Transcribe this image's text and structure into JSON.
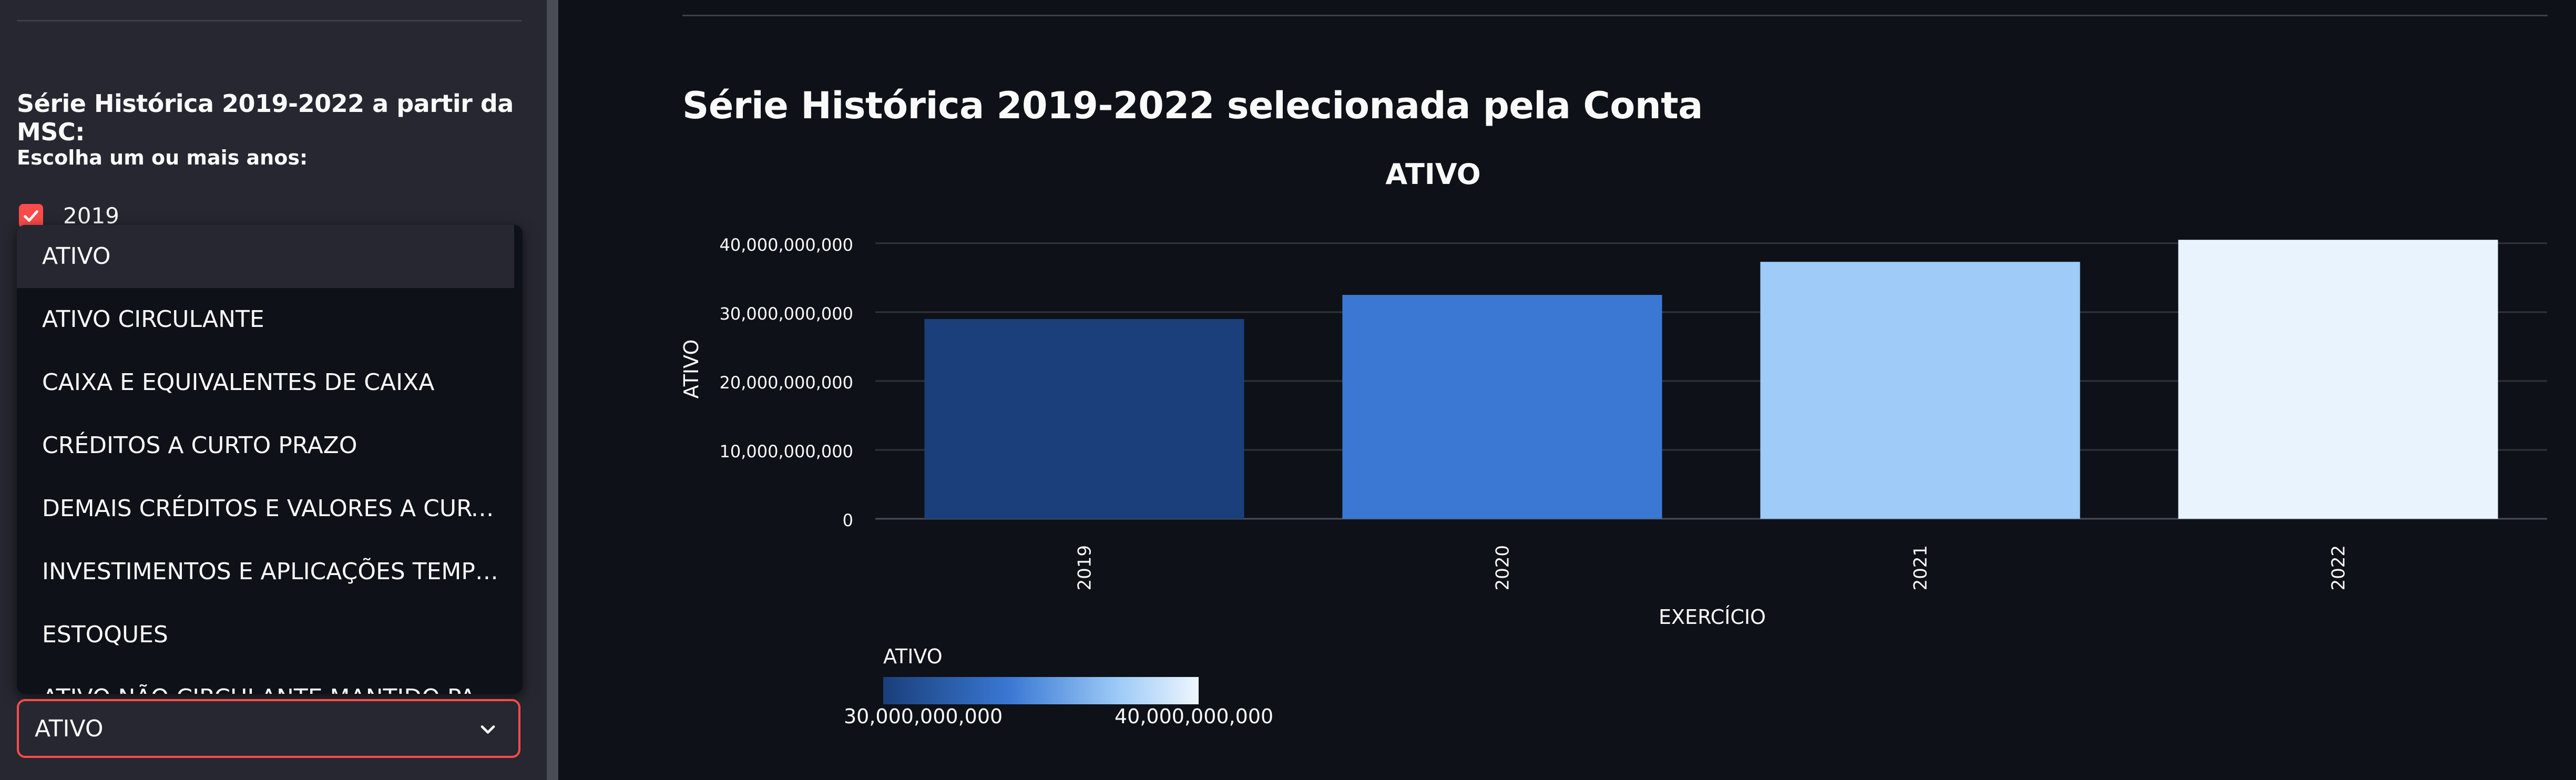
{
  "sidebar": {
    "heading": "Série Histórica 2019-2022 a partir da MSC:",
    "year_label": "Escolha um ou mais anos:",
    "checkbox": {
      "label": "2019",
      "checked": true
    },
    "dropdown_options": [
      "ATIVO",
      "ATIVO CIRCULANTE",
      "CAIXA E EQUIVALENTES DE CAIXA",
      "CRÉDITOS A CURTO PRAZO",
      "DEMAIS CRÉDITOS E VALORES A CURTO ...",
      "INVESTIMENTOS E APLICAÇÕES TEMPO...",
      "ESTOQUES",
      "ATIVO NÃO CIRCULANTE MANTIDO PARA..."
    ],
    "select": {
      "value": "ATIVO"
    }
  },
  "main": {
    "title": "Série Histórica 2019-2022 selecionada pela Conta"
  },
  "chart_data": {
    "type": "bar",
    "title": "ATIVO",
    "xlabel": "EXERCÍCIO",
    "ylabel": "ATIVO",
    "categories": [
      "2019",
      "2020",
      "2021",
      "2022"
    ],
    "values": [
      29000000000,
      32500000000,
      37300000000,
      40500000000
    ],
    "ylim": [
      0,
      42500000000
    ],
    "yticks": [
      0,
      10000000000,
      20000000000,
      30000000000,
      40000000000
    ],
    "ytick_labels": [
      "0",
      "10,000,000,000",
      "20,000,000,000",
      "30,000,000,000",
      "40,000,000,000"
    ],
    "grid": true,
    "colorscale": [
      "#1a3f7a",
      "#3a78d4",
      "#9ecbf7",
      "#e8f3fd"
    ],
    "colorbar": {
      "title": "ATIVO",
      "min_label": "30,000,000,000",
      "max_label": "40,000,000,000",
      "min": 29000000000,
      "max": 40500000000
    }
  }
}
